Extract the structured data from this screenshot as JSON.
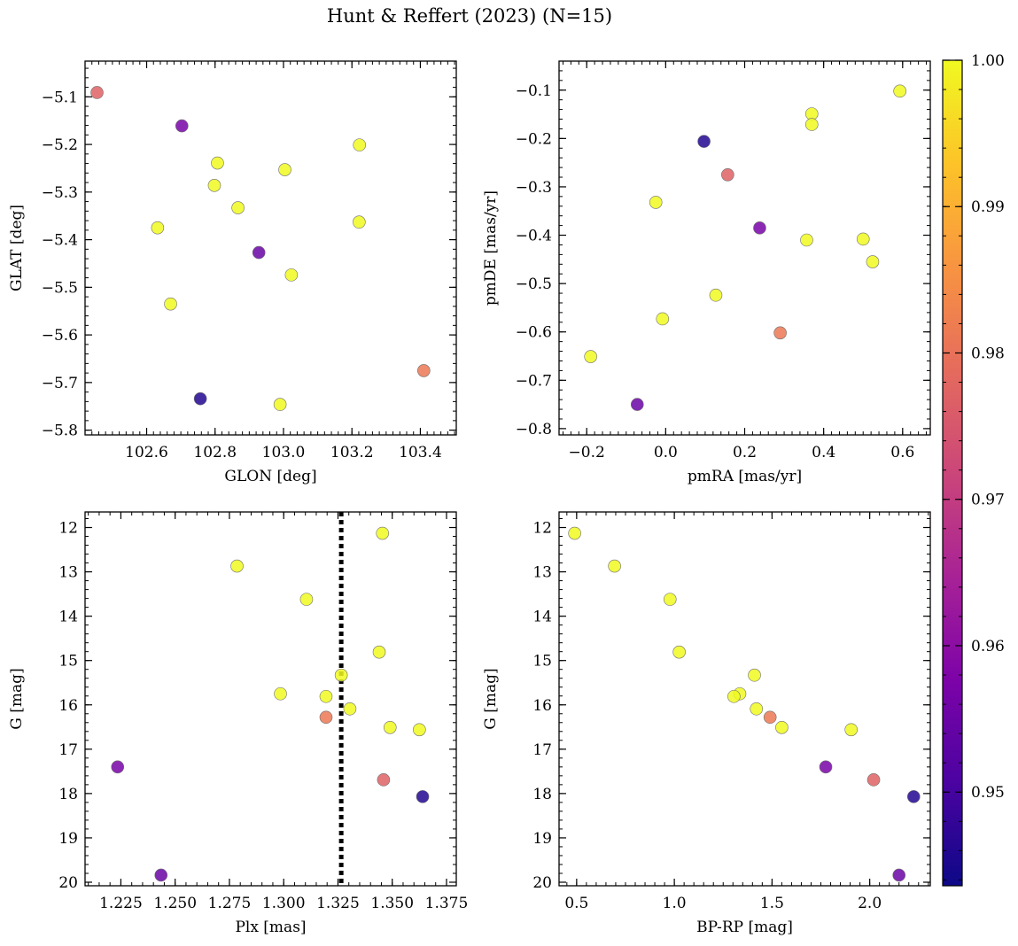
{
  "title": "Hunt & Reffert (2023) (N=15)",
  "colorbar": {
    "label": "",
    "range": [
      0.9436,
      1.0
    ],
    "ticks": [
      0.95,
      0.96,
      0.97,
      0.98,
      0.99,
      1.0
    ],
    "tick_labels": [
      "0.95",
      "0.96",
      "0.97",
      "0.98",
      "0.99",
      "1.00"
    ],
    "colormap": "plasma"
  },
  "chart_data": [
    {
      "type": "scatter",
      "title": "",
      "xlabel": "GLON [deg]",
      "ylabel": "GLAT [deg]",
      "xlim": [
        102.42,
        103.505
      ],
      "ylim": [
        -5.81,
        -5.025
      ],
      "y_inverted": false,
      "xticks": [
        102.4,
        102.6,
        102.8,
        103.0,
        103.2,
        103.4
      ],
      "xtick_labels": [
        "102.4",
        "102.6",
        "102.8",
        "103.0",
        "103.2",
        "103.4"
      ],
      "yticks": [
        -5.1,
        -5.2,
        -5.3,
        -5.4,
        -5.5,
        -5.6,
        -5.7,
        -5.8
      ],
      "ytick_labels": [
        "−5.1",
        "−5.2",
        "−5.3",
        "−5.4",
        "−5.5",
        "−5.6",
        "−5.7",
        "−5.8"
      ],
      "x_minor_step": 0.02,
      "y_minor_step": 0.02,
      "points": [
        {
          "x": 102.455,
          "y": -5.091,
          "c": 0.977
        },
        {
          "x": 102.703,
          "y": -5.161,
          "c": 0.957
        },
        {
          "x": 102.807,
          "y": -5.239,
          "c": 1.0
        },
        {
          "x": 102.798,
          "y": -5.286,
          "c": 1.0
        },
        {
          "x": 102.632,
          "y": -5.375,
          "c": 1.0
        },
        {
          "x": 102.867,
          "y": -5.333,
          "c": 1.0
        },
        {
          "x": 103.004,
          "y": -5.253,
          "c": 1.0
        },
        {
          "x": 103.222,
          "y": -5.201,
          "c": 1.0
        },
        {
          "x": 103.221,
          "y": -5.363,
          "c": 1.0
        },
        {
          "x": 102.928,
          "y": -5.427,
          "c": 0.955
        },
        {
          "x": 103.023,
          "y": -5.474,
          "c": 1.0
        },
        {
          "x": 102.67,
          "y": -5.535,
          "c": 1.0
        },
        {
          "x": 102.757,
          "y": -5.734,
          "c": 0.946
        },
        {
          "x": 102.99,
          "y": -5.746,
          "c": 1.0
        },
        {
          "x": 103.41,
          "y": -5.675,
          "c": 0.981
        }
      ]
    },
    {
      "type": "scatter",
      "title": "",
      "xlabel": "pmRA [mas/yr]",
      "ylabel": "pmDE [mas/yr]",
      "xlim": [
        -0.27,
        0.67
      ],
      "ylim": [
        -0.813,
        -0.04
      ],
      "y_inverted": false,
      "xticks": [
        -0.2,
        0.0,
        0.2,
        0.4,
        0.6
      ],
      "xtick_labels": [
        "−0.2",
        "0.0",
        "0.2",
        "0.4",
        "0.6"
      ],
      "yticks": [
        -0.1,
        -0.2,
        -0.3,
        -0.4,
        -0.5,
        -0.6,
        -0.7,
        -0.8
      ],
      "ytick_labels": [
        "−0.1",
        "−0.2",
        "−0.3",
        "−0.4",
        "−0.5",
        "−0.6",
        "−0.7",
        "−0.8"
      ],
      "x_minor_step": 0.02,
      "y_minor_step": 0.02,
      "points": [
        {
          "x": 0.593,
          "y": -0.102,
          "c": 1.0
        },
        {
          "x": 0.37,
          "y": -0.149,
          "c": 1.0
        },
        {
          "x": 0.37,
          "y": -0.171,
          "c": 1.0
        },
        {
          "x": 0.097,
          "y": -0.206,
          "c": 0.946
        },
        {
          "x": 0.157,
          "y": -0.275,
          "c": 0.977
        },
        {
          "x": -0.025,
          "y": -0.332,
          "c": 1.0
        },
        {
          "x": 0.238,
          "y": -0.385,
          "c": 0.957
        },
        {
          "x": 0.357,
          "y": -0.41,
          "c": 1.0
        },
        {
          "x": 0.5,
          "y": -0.408,
          "c": 1.0
        },
        {
          "x": 0.524,
          "y": -0.455,
          "c": 1.0
        },
        {
          "x": 0.127,
          "y": -0.524,
          "c": 1.0
        },
        {
          "x": -0.008,
          "y": -0.573,
          "c": 1.0
        },
        {
          "x": 0.29,
          "y": -0.602,
          "c": 0.981
        },
        {
          "x": -0.19,
          "y": -0.651,
          "c": 1.0
        },
        {
          "x": -0.072,
          "y": -0.75,
          "c": 0.955
        }
      ]
    },
    {
      "type": "scatter",
      "title": "",
      "xlabel": "Plx [mas]",
      "ylabel": "G [mag]",
      "xlim": [
        1.2085,
        1.3795
      ],
      "ylim": [
        20.08,
        11.65
      ],
      "y_inverted": true,
      "xticks": [
        1.225,
        1.25,
        1.275,
        1.3,
        1.325,
        1.35,
        1.375
      ],
      "xtick_labels": [
        "1.225",
        "1.250",
        "1.275",
        "1.300",
        "1.325",
        "1.350",
        "1.375"
      ],
      "yticks": [
        12,
        13,
        14,
        15,
        16,
        17,
        18,
        19,
        20
      ],
      "ytick_labels": [
        "12",
        "13",
        "14",
        "15",
        "16",
        "17",
        "18",
        "19",
        "20"
      ],
      "x_minor_step": 0.005,
      "y_minor_step": 0.2,
      "vline": {
        "x": 1.3265,
        "style": "dotted",
        "color": "#000000"
      },
      "points": [
        {
          "x": 1.3455,
          "y": 12.13,
          "c": 1.0
        },
        {
          "x": 1.2785,
          "y": 12.87,
          "c": 1.0
        },
        {
          "x": 1.3105,
          "y": 13.62,
          "c": 1.0
        },
        {
          "x": 1.344,
          "y": 14.81,
          "c": 1.0
        },
        {
          "x": 1.3265,
          "y": 15.33,
          "c": 1.0
        },
        {
          "x": 1.2985,
          "y": 15.75,
          "c": 1.0
        },
        {
          "x": 1.3195,
          "y": 15.81,
          "c": 1.0
        },
        {
          "x": 1.3305,
          "y": 16.09,
          "c": 1.0
        },
        {
          "x": 1.3195,
          "y": 16.28,
          "c": 0.981
        },
        {
          "x": 1.349,
          "y": 16.51,
          "c": 1.0
        },
        {
          "x": 1.3625,
          "y": 16.56,
          "c": 1.0
        },
        {
          "x": 1.2235,
          "y": 17.4,
          "c": 0.957
        },
        {
          "x": 1.346,
          "y": 17.69,
          "c": 0.977
        },
        {
          "x": 1.364,
          "y": 18.07,
          "c": 0.946
        },
        {
          "x": 1.2435,
          "y": 19.84,
          "c": 0.955
        }
      ]
    },
    {
      "type": "scatter",
      "title": "",
      "xlabel": "BP-RP [mag]",
      "ylabel": "G [mag]",
      "xlim": [
        0.41,
        2.31
      ],
      "ylim": [
        20.08,
        11.65
      ],
      "y_inverted": true,
      "xticks": [
        0.5,
        1.0,
        1.5,
        2.0
      ],
      "xtick_labels": [
        "0.5",
        "1.0",
        "1.5",
        "2.0"
      ],
      "yticks": [
        12,
        13,
        14,
        15,
        16,
        17,
        18,
        19,
        20
      ],
      "ytick_labels": [
        "12",
        "13",
        "14",
        "15",
        "16",
        "17",
        "18",
        "19",
        "20"
      ],
      "x_minor_step": 0.05,
      "y_minor_step": 0.2,
      "points": [
        {
          "x": 0.49,
          "y": 12.13,
          "c": 1.0
        },
        {
          "x": 0.694,
          "y": 12.87,
          "c": 1.0
        },
        {
          "x": 0.978,
          "y": 13.62,
          "c": 1.0
        },
        {
          "x": 1.025,
          "y": 14.81,
          "c": 1.0
        },
        {
          "x": 1.41,
          "y": 15.33,
          "c": 1.0
        },
        {
          "x": 1.335,
          "y": 15.75,
          "c": 1.0
        },
        {
          "x": 1.305,
          "y": 15.81,
          "c": 1.0
        },
        {
          "x": 1.42,
          "y": 16.09,
          "c": 1.0
        },
        {
          "x": 1.49,
          "y": 16.28,
          "c": 0.981
        },
        {
          "x": 1.55,
          "y": 16.51,
          "c": 1.0
        },
        {
          "x": 1.905,
          "y": 16.56,
          "c": 1.0
        },
        {
          "x": 1.775,
          "y": 17.4,
          "c": 0.957
        },
        {
          "x": 2.02,
          "y": 17.69,
          "c": 0.977
        },
        {
          "x": 2.225,
          "y": 18.07,
          "c": 0.946
        },
        {
          "x": 2.15,
          "y": 19.84,
          "c": 0.955
        }
      ]
    }
  ]
}
